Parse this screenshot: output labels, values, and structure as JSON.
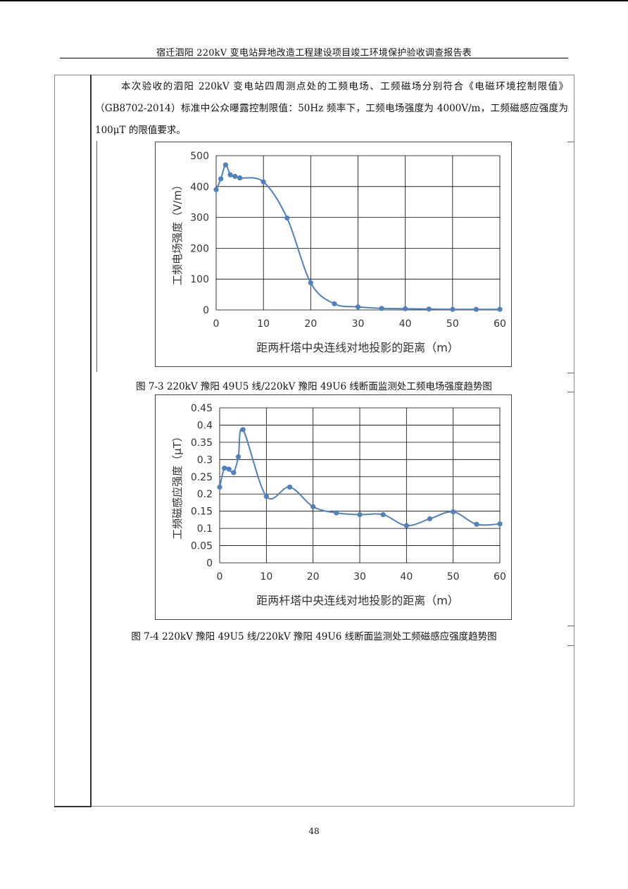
{
  "header": {
    "title": "宿迁泗阳 220kV 变电站异地改造工程建设项目竣工环境保护验收调查报告表"
  },
  "body": {
    "paragraph": "本次验收的泗阳 220kV 变电站四周测点处的工频电场、工频磁场分别符合《电磁环境控制限值》（GB8702-2014）标准中公众曝露控制限值：50Hz 频率下，工频电场强度为 4000V/m，工频磁感应强度为 100μT 的限值要求。"
  },
  "charts": {
    "electric": {
      "caption": "图 7-3 220kV 豫阳 49U5 线/220kV 豫阳 49U6 线断面监测处工频电场强度趋势图",
      "ylabel": "工频电场强度（V/m）",
      "xlabel": "距两杆塔中央连线对地投影的距离（m）",
      "ytick_labels": [
        "500",
        "400",
        "300",
        "200",
        "100",
        "0"
      ],
      "xtick_labels": [
        "0",
        "10",
        "20",
        "30",
        "40",
        "50",
        "60"
      ]
    },
    "magnetic": {
      "caption": "图 7-4 220kV 豫阳 49U5 线/220kV 豫阳 49U6 线断面监测处工频磁感应强度趋势图",
      "ylabel": "工频磁感应强度（μT）",
      "xlabel": "距两杆塔中央连线对地投影的距离（m）",
      "ytick_labels": [
        "0.45",
        "0.4",
        "0.35",
        "0.3",
        "0.25",
        "0.2",
        "0.15",
        "0.1",
        "0.05",
        "0"
      ],
      "xtick_labels": [
        "0",
        "10",
        "20",
        "30",
        "40",
        "50",
        "60"
      ]
    }
  },
  "chart_data": [
    {
      "type": "line",
      "title": "",
      "xlabel": "距两杆塔中央连线对地投影的距离（m）",
      "ylabel": "工频电场强度（V/m）",
      "xlim": [
        0,
        60
      ],
      "ylim": [
        0,
        500
      ],
      "grid": true,
      "color": "#4f81bd",
      "x": [
        0,
        1,
        2,
        3,
        4,
        5,
        10,
        15,
        20,
        25,
        30,
        35,
        40,
        45,
        50,
        55,
        60
      ],
      "y": [
        390,
        425,
        470,
        438,
        433,
        428,
        415,
        298,
        88,
        20,
        10,
        5,
        4,
        3,
        2,
        2,
        2
      ]
    },
    {
      "type": "line",
      "title": "",
      "xlabel": "距两杆塔中央连线对地投影的距离（m）",
      "ylabel": "工频磁感应强度（μT）",
      "xlim": [
        0,
        60
      ],
      "ylim": [
        0,
        0.45
      ],
      "grid": true,
      "color": "#4f81bd",
      "x": [
        0,
        1,
        2,
        3,
        4,
        5,
        10,
        15,
        20,
        25,
        30,
        35,
        40,
        45,
        50,
        55,
        60
      ],
      "y": [
        0.22,
        0.275,
        0.272,
        0.262,
        0.308,
        0.387,
        0.193,
        0.22,
        0.163,
        0.145,
        0.14,
        0.14,
        0.108,
        0.128,
        0.148,
        0.112,
        0.113
      ]
    }
  ],
  "page": {
    "number": "48"
  }
}
